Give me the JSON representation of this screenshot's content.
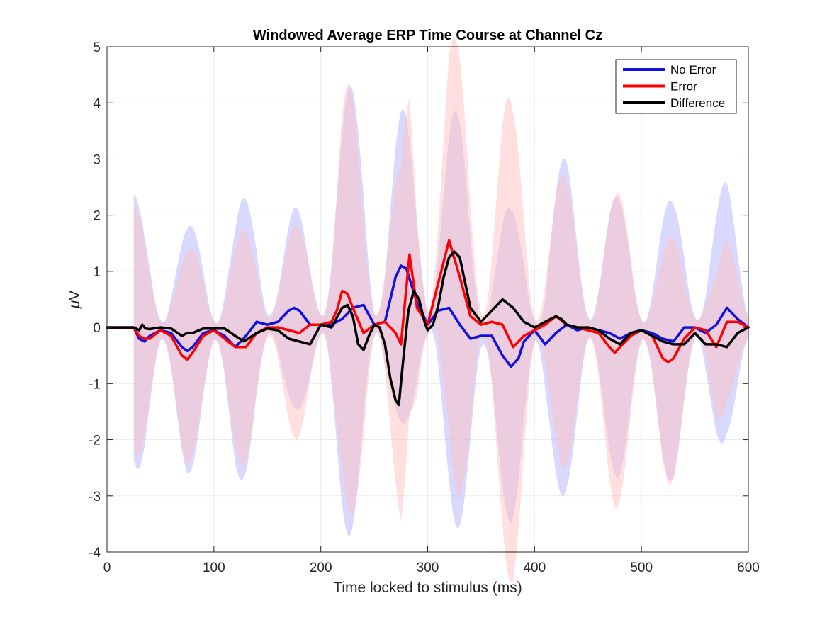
{
  "chart_data": {
    "type": "line",
    "title": "Windowed Average ERP Time Course at Channel Cz",
    "xlabel": "Time locked to stimulus (ms)",
    "ylabel_greek": "μ",
    "ylabel_unit": "V",
    "xlim": [
      0,
      600
    ],
    "ylim": [
      -4,
      5
    ],
    "xticks": [
      0,
      100,
      200,
      300,
      400,
      500,
      600
    ],
    "yticks": [
      -4,
      -3,
      -2,
      -1,
      0,
      1,
      2,
      3,
      4,
      5
    ],
    "grid": true,
    "legend_position": "top-right",
    "series": [
      {
        "name": "No Error",
        "color": "#1010e0",
        "band_color": "#b4b4ff",
        "x": [
          0,
          25,
          30,
          35,
          40,
          50,
          60,
          70,
          75,
          80,
          90,
          100,
          110,
          120,
          130,
          140,
          150,
          160,
          170,
          175,
          180,
          190,
          200,
          210,
          220,
          230,
          240,
          250,
          260,
          270,
          275,
          280,
          290,
          300,
          310,
          320,
          330,
          340,
          350,
          360,
          370,
          378,
          385,
          390,
          400,
          410,
          420,
          430,
          440,
          450,
          460,
          470,
          480,
          490,
          500,
          510,
          520,
          530,
          540,
          550,
          560,
          570,
          580,
          590,
          600
        ],
        "y": [
          0,
          0,
          -0.2,
          -0.25,
          -0.15,
          -0.05,
          -0.1,
          -0.35,
          -0.42,
          -0.35,
          -0.1,
          -0.05,
          -0.15,
          -0.35,
          -0.15,
          0.1,
          0.05,
          0.1,
          0.3,
          0.35,
          0.3,
          0.05,
          0.05,
          0.05,
          0.15,
          0.35,
          0.4,
          0.05,
          0.1,
          0.9,
          1.1,
          1.05,
          0.45,
          0.05,
          0.3,
          0.35,
          0.05,
          -0.2,
          -0.15,
          -0.15,
          -0.5,
          -0.7,
          -0.55,
          -0.25,
          -0.05,
          -0.3,
          -0.1,
          0.05,
          -0.05,
          0,
          -0.05,
          -0.1,
          -0.2,
          -0.1,
          -0.05,
          -0.1,
          -0.2,
          -0.25,
          0,
          0,
          -0.1,
          0.05,
          0.35,
          0.15,
          0
        ]
      },
      {
        "name": "Error",
        "color": "#ff0000",
        "band_color": "#ffc0c0",
        "x": [
          0,
          25,
          30,
          35,
          40,
          50,
          60,
          70,
          75,
          80,
          90,
          100,
          110,
          120,
          130,
          140,
          150,
          160,
          170,
          180,
          190,
          200,
          210,
          215,
          220,
          225,
          230,
          240,
          250,
          260,
          270,
          275,
          283,
          290,
          300,
          310,
          320,
          330,
          340,
          350,
          360,
          370,
          380,
          390,
          400,
          410,
          420,
          430,
          440,
          450,
          460,
          470,
          475,
          480,
          490,
          500,
          510,
          520,
          525,
          530,
          540,
          550,
          560,
          570,
          580,
          590,
          600
        ],
        "y": [
          0,
          0,
          -0.15,
          -0.2,
          -0.2,
          -0.05,
          -0.15,
          -0.5,
          -0.57,
          -0.45,
          -0.15,
          -0.05,
          -0.2,
          -0.35,
          -0.35,
          -0.1,
          0,
          0,
          -0.05,
          -0.1,
          0.05,
          0.05,
          0.1,
          0.3,
          0.65,
          0.6,
          0.35,
          -0.1,
          0.05,
          0.1,
          -0.1,
          -0.3,
          1.3,
          0.35,
          0.05,
          0.8,
          1.55,
          0.9,
          0.2,
          0.05,
          0.1,
          0.05,
          -0.35,
          -0.15,
          -0.05,
          0.05,
          0.2,
          0.05,
          0,
          -0.05,
          -0.1,
          -0.35,
          -0.45,
          -0.35,
          -0.15,
          -0.05,
          -0.15,
          -0.55,
          -0.62,
          -0.55,
          -0.2,
          0,
          -0.05,
          -0.35,
          0.1,
          0.1,
          0
        ]
      },
      {
        "name": "Difference",
        "color": "#000000",
        "x": [
          0,
          25,
          30,
          33,
          36,
          40,
          50,
          60,
          70,
          75,
          80,
          90,
          100,
          110,
          120,
          128,
          140,
          150,
          160,
          170,
          180,
          190,
          200,
          210,
          220,
          225,
          230,
          235,
          240,
          245,
          250,
          255,
          260,
          265,
          270,
          273,
          277,
          282,
          287,
          292,
          297,
          300,
          305,
          310,
          315,
          320,
          325,
          330,
          340,
          350,
          360,
          370,
          380,
          390,
          400,
          410,
          420,
          425,
          430,
          440,
          450,
          460,
          470,
          480,
          490,
          500,
          510,
          520,
          530,
          540,
          550,
          560,
          570,
          580,
          590,
          600
        ],
        "y": [
          0,
          0,
          -0.05,
          0.05,
          -0.02,
          -0.03,
          0,
          -0.02,
          -0.15,
          -0.1,
          -0.1,
          -0.02,
          -0.02,
          -0.02,
          -0.15,
          -0.25,
          -0.1,
          -0.02,
          -0.05,
          -0.2,
          -0.25,
          -0.3,
          0.05,
          0.0,
          0.35,
          0.4,
          0.2,
          -0.3,
          -0.4,
          -0.15,
          0.05,
          0.0,
          -0.3,
          -0.9,
          -1.3,
          -1.38,
          -0.6,
          0.3,
          0.65,
          0.5,
          0.1,
          -0.05,
          0.05,
          0.4,
          0.9,
          1.25,
          1.35,
          1.25,
          0.35,
          0.1,
          0.3,
          0.5,
          0.35,
          0.1,
          0,
          0.1,
          0.2,
          0.15,
          0.05,
          0,
          0,
          -0.05,
          -0.2,
          -0.3,
          -0.1,
          -0.05,
          -0.15,
          -0.25,
          -0.3,
          -0.3,
          -0.1,
          -0.3,
          -0.3,
          -0.35,
          -0.1,
          0
        ]
      }
    ],
    "bands": {
      "start_ms": 25,
      "end_ms": 600,
      "period_ms": 50,
      "first_peak_ms": 27,
      "no_error_peak_amplitudes": [
        2.4,
        2.2,
        2.5,
        1.8,
        4.0,
        2.8,
        3.7,
        2.8,
        3.0,
        2.5,
        2.5,
        2.3,
        2.9
      ],
      "error_peak_amplitudes": [
        2.2,
        1.9,
        2.1,
        1.9,
        3.8,
        3.2,
        4.0,
        4.3,
        2.6,
        2.8,
        2.2,
        1.5,
        2.3
      ],
      "floor": 0.15
    }
  }
}
